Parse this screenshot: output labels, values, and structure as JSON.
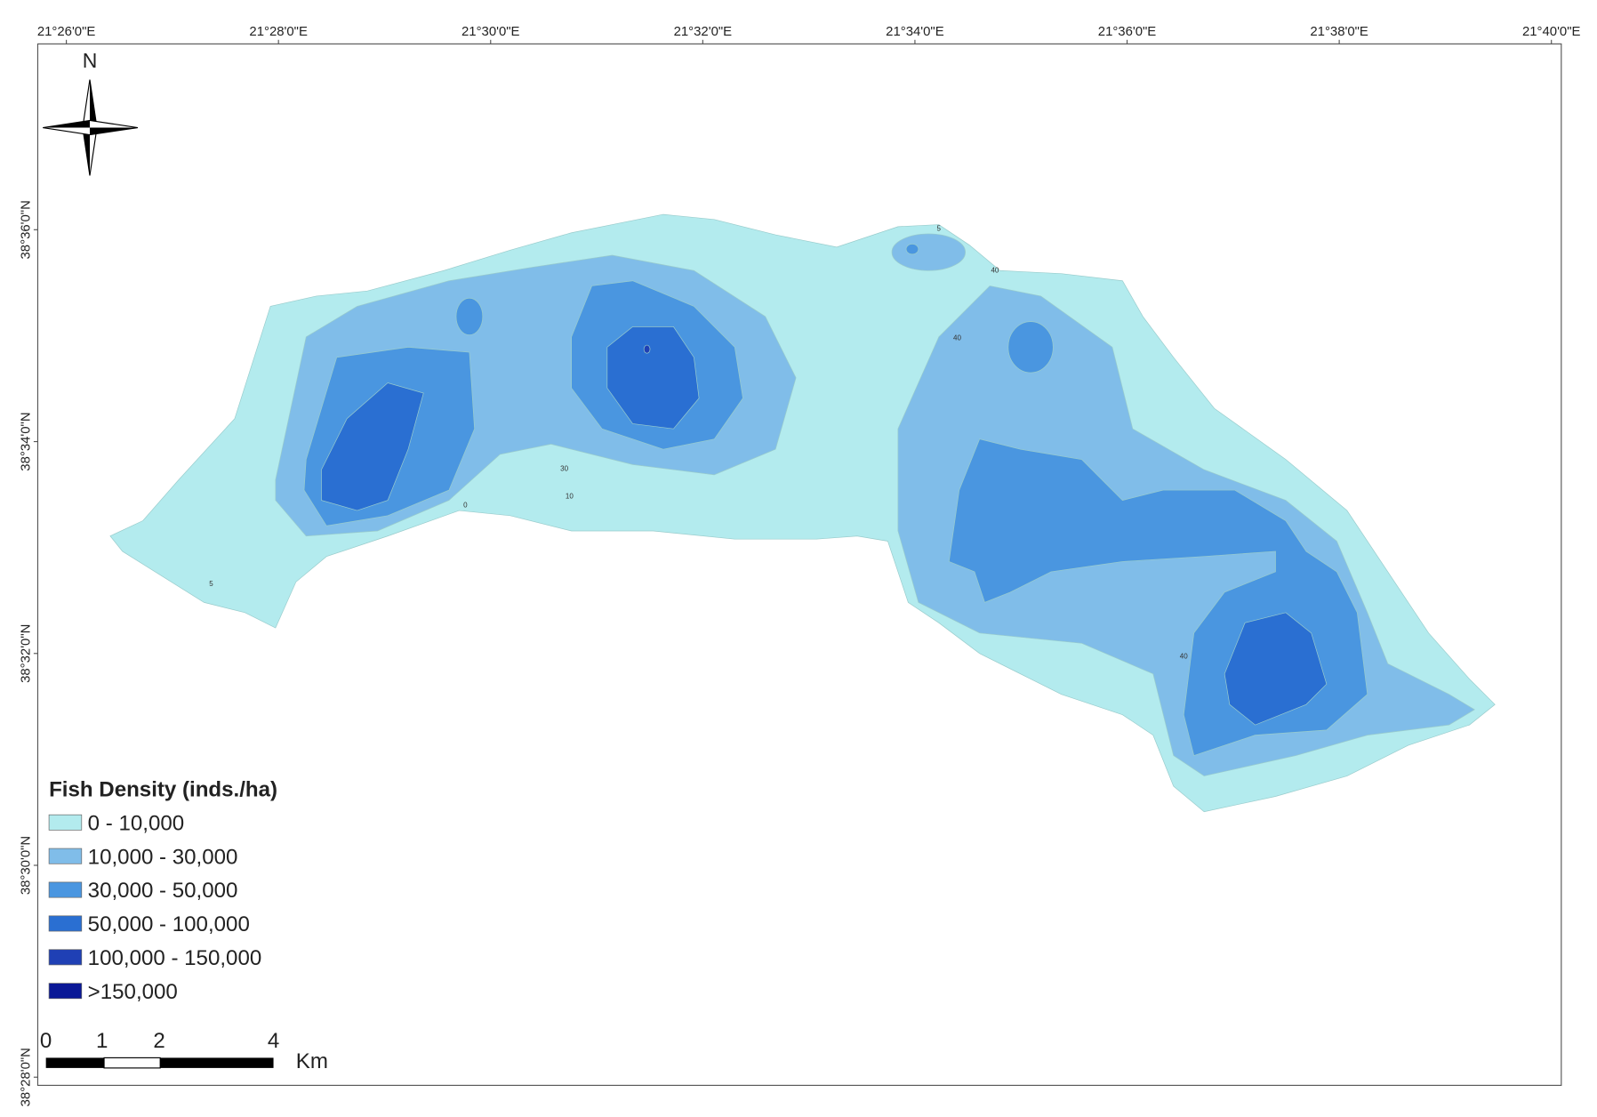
{
  "map": {
    "longitude_labels": [
      "21°26'0\"E",
      "21°28'0\"E",
      "21°30'0\"E",
      "21°32'0\"E",
      "21°34'0\"E",
      "21°36'0\"E",
      "21°38'0\"E",
      "21°40'0\"E"
    ],
    "latitude_labels": [
      "38°36'0\"N",
      "38°34'0\"N",
      "38°32'0\"N",
      "38°30'0\"N",
      "38°28'0\"N"
    ],
    "north_label": "N",
    "legend": {
      "title": "Fish Density (inds./ha)",
      "items": [
        {
          "label": "0 - 10,000",
          "color": "#b3ebee"
        },
        {
          "label": "10,000 - 30,000",
          "color": "#80bde9"
        },
        {
          "label": "30,000 - 50,000",
          "color": "#4a96e0"
        },
        {
          "label": "50,000 - 100,000",
          "color": "#2a6fd2"
        },
        {
          "label": "100,000 - 150,000",
          "color": "#1f40b5"
        },
        {
          "label": ">150,000",
          "color": "#0a1896"
        }
      ]
    },
    "scale_bar": {
      "labels": [
        "0",
        "1",
        "2",
        "4"
      ],
      "unit": "Km"
    },
    "contour_labels": [
      "5",
      "40",
      "40",
      "30",
      "10",
      "0",
      "5",
      "40"
    ]
  }
}
